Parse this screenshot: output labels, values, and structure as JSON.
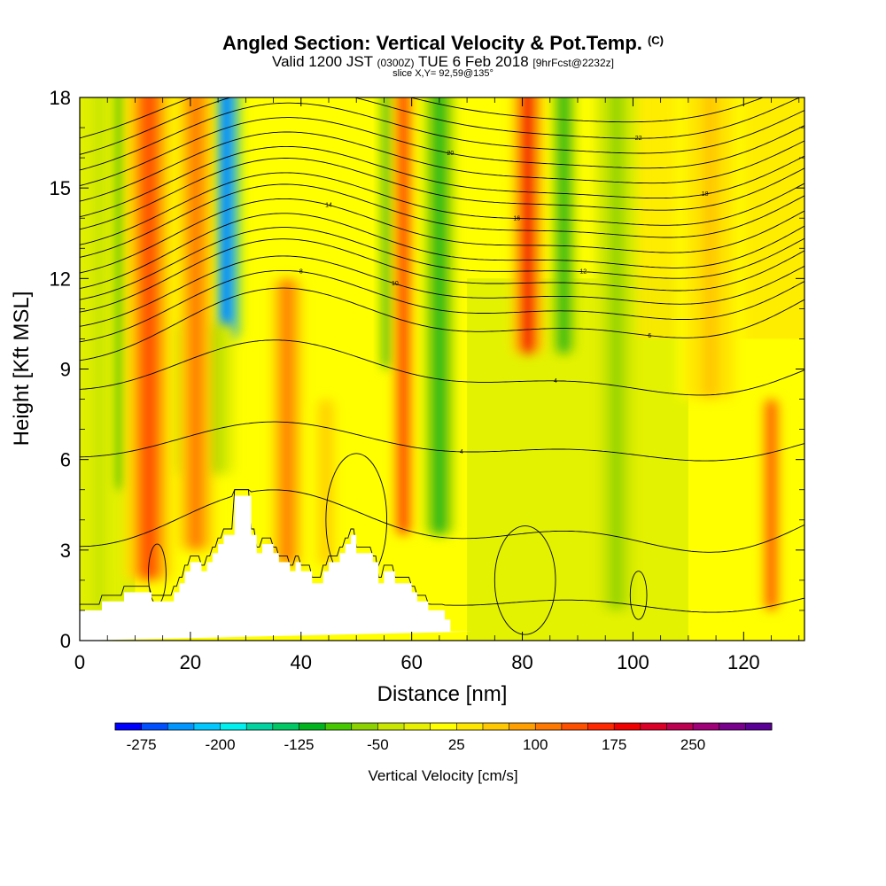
{
  "header": {
    "title": "Angled Section: Vertical Velocity & Pot.Temp.",
    "title_suffix": "(C)",
    "valid_prefix": "Valid 1200 JST",
    "valid_utc": "(0300Z)",
    "valid_date": "TUE 6 Feb 2018",
    "forecast": "[9hrFcst@2232z]",
    "slice": "slice X,Y= 92,59@135°"
  },
  "chart_data": {
    "type": "heatmap",
    "xlabel": "Distance [nm]",
    "ylabel": "Height [Kft MSL]",
    "xlim": [
      0,
      131
    ],
    "ylim": [
      0,
      18
    ],
    "x_ticks": [
      0,
      20,
      40,
      60,
      80,
      100,
      120
    ],
    "y_ticks": [
      0,
      3,
      6,
      9,
      12,
      15,
      18
    ],
    "colorbar": {
      "label": "Vertical Velocity [cm/s]",
      "min": -300,
      "step": 25,
      "tick_labels": [
        "-275",
        "-200",
        "-125",
        "-50",
        "25",
        "100",
        "175",
        "250"
      ],
      "colors": [
        "#0000ff",
        "#0050ff",
        "#0096ff",
        "#00c8ff",
        "#00f0f0",
        "#00d2a0",
        "#00c864",
        "#00b41e",
        "#46c800",
        "#8cd200",
        "#c8e600",
        "#e6f000",
        "#ffff00",
        "#ffe600",
        "#ffc800",
        "#ffa000",
        "#ff7800",
        "#ff5000",
        "#ff2800",
        "#f00000",
        "#dc0028",
        "#be0050",
        "#a00078",
        "#78008c",
        "#5a0096"
      ]
    },
    "updraft_columns": [
      {
        "x": 12.5,
        "w": 4.5,
        "w_cms": 140,
        "top": 18.5,
        "bottom": 2.0
      },
      {
        "x": 21.0,
        "w": 3.5,
        "w_cms": 100,
        "top": 18.5,
        "bottom": 3.0
      },
      {
        "x": 37.5,
        "w": 3.0,
        "w_cms": 110,
        "top": 12.0,
        "bottom": 2.5
      },
      {
        "x": 44.5,
        "w": 2.5,
        "w_cms": 60,
        "top": 8.0,
        "bottom": 2.5
      },
      {
        "x": 58.5,
        "w": 2.0,
        "w_cms": 170,
        "top": 18.5,
        "bottom": 3.5
      },
      {
        "x": 81.0,
        "w": 3.0,
        "w_cms": 180,
        "top": 18.5,
        "bottom": 9.5
      },
      {
        "x": 114.0,
        "w": 6.0,
        "w_cms": 50,
        "top": 18.5,
        "bottom": 8.0
      },
      {
        "x": 125.0,
        "w": 1.8,
        "w_cms": 160,
        "top": 8.0,
        "bottom": 1.0
      }
    ],
    "downdraft_columns": [
      {
        "x": 7.0,
        "w": 2.5,
        "w_cms": -90,
        "top": 18.5,
        "bottom": 5.0
      },
      {
        "x": 26.5,
        "w": 2.6,
        "w_cms": -275,
        "top": 18.5,
        "bottom": 10.0
      },
      {
        "x": 22.0,
        "w": 6.0,
        "w_cms": -80,
        "top": 10.5,
        "bottom": 5.5
      },
      {
        "x": 55.5,
        "w": 1.2,
        "w_cms": -110,
        "top": 18.5,
        "bottom": 9.0
      },
      {
        "x": 65.0,
        "w": 2.8,
        "w_cms": -110,
        "top": 18.5,
        "bottom": 3.5
      },
      {
        "x": 87.5,
        "w": 2.2,
        "w_cms": -120,
        "top": 18.5,
        "bottom": 9.5
      },
      {
        "x": 97.0,
        "w": 4.0,
        "w_cms": -55,
        "top": 18.5,
        "bottom": 1.0
      },
      {
        "x": 3.5,
        "w": 2.5,
        "w_cms": -40,
        "top": 18.5,
        "bottom": 1.0
      }
    ],
    "terrain": {
      "x": [
        0,
        4,
        4,
        8,
        8,
        13,
        13,
        17,
        17,
        18,
        18,
        19,
        19,
        20,
        20,
        22,
        22,
        23,
        23,
        24,
        24,
        25,
        25,
        26,
        26,
        28,
        28,
        31,
        31,
        32,
        32,
        33,
        33,
        35,
        35,
        36,
        36,
        38,
        38,
        39,
        39,
        40,
        40,
        42,
        42,
        44,
        44,
        45,
        45,
        47,
        47,
        48,
        48,
        49,
        49,
        50,
        50,
        53,
        53,
        54,
        54,
        55,
        55,
        57,
        57,
        60,
        60,
        61,
        61,
        63,
        63,
        66,
        66,
        67,
        67,
        71,
        71,
        131
      ],
      "h": [
        1.0,
        1.0,
        1.3,
        1.3,
        1.6,
        1.6,
        1.3,
        1.3,
        1.6,
        1.6,
        1.9,
        1.9,
        2.3,
        2.3,
        2.6,
        2.6,
        2.3,
        2.3,
        2.6,
        2.6,
        2.9,
        2.9,
        3.2,
        3.2,
        3.5,
        3.5,
        4.8,
        4.8,
        3.5,
        3.5,
        2.9,
        2.9,
        3.2,
        3.2,
        2.9,
        2.9,
        2.6,
        2.6,
        2.3,
        2.3,
        2.6,
        2.6,
        2.3,
        2.3,
        1.9,
        1.9,
        2.3,
        2.3,
        2.6,
        2.6,
        2.9,
        2.9,
        3.2,
        3.2,
        3.5,
        3.5,
        2.9,
        2.9,
        2.6,
        2.6,
        1.9,
        1.9,
        2.3,
        2.3,
        1.9,
        1.9,
        1.6,
        1.6,
        1.3,
        1.3,
        1.0,
        1.0,
        0.7,
        0.7,
        0.3,
        0.3,
        0.3
      ]
    },
    "isentropes": [
      {
        "base": 1.4,
        "amp": 0.6,
        "wave": 1,
        "label": ""
      },
      {
        "base": 3.8,
        "amp": 1.2,
        "wave": 1,
        "label": ""
      },
      {
        "base": 6.5,
        "amp": 0.8,
        "wave": 1,
        "label": "4"
      },
      {
        "base": 8.9,
        "amp": 1.2,
        "wave": 1,
        "label": "4"
      },
      {
        "base": 10.6,
        "amp": 1.6,
        "wave": 1,
        "label": "6"
      },
      {
        "base": 11.2,
        "amp": 1.6,
        "wave": 1,
        "label": "8"
      },
      {
        "base": 11.7,
        "amp": 1.6,
        "wave": 1,
        "label": "10"
      },
      {
        "base": 12.2,
        "amp": 1.7,
        "wave": 1,
        "label": ""
      },
      {
        "base": 12.6,
        "amp": 1.7,
        "wave": 1,
        "label": "12"
      },
      {
        "base": 13.0,
        "amp": 1.8,
        "wave": 1,
        "label": ""
      },
      {
        "base": 13.5,
        "amp": 1.8,
        "wave": 1,
        "label": "14"
      },
      {
        "base": 14.0,
        "amp": 1.8,
        "wave": 1,
        "label": ""
      },
      {
        "base": 14.4,
        "amp": 1.8,
        "wave": 1,
        "label": "16"
      },
      {
        "base": 14.9,
        "amp": 1.8,
        "wave": 1,
        "label": ""
      },
      {
        "base": 15.3,
        "amp": 1.8,
        "wave": 1,
        "label": "18"
      },
      {
        "base": 15.8,
        "amp": 1.8,
        "wave": 1,
        "label": ""
      },
      {
        "base": 16.3,
        "amp": 1.8,
        "wave": 1,
        "label": "20"
      },
      {
        "base": 16.8,
        "amp": 1.8,
        "wave": 1,
        "label": ""
      },
      {
        "base": 17.3,
        "amp": 1.8,
        "wave": 1,
        "label": "22"
      },
      {
        "base": 17.8,
        "amp": 1.7,
        "wave": 1,
        "label": ""
      }
    ],
    "closed_contours": [
      {
        "cx": 80.5,
        "cy": 2.0,
        "rx": 5.5,
        "ry": 1.8
      },
      {
        "cx": 101.0,
        "cy": 1.5,
        "rx": 1.5,
        "ry": 0.8
      },
      {
        "cx": 50.0,
        "cy": 4.0,
        "rx": 5.5,
        "ry": 2.2
      },
      {
        "cx": 14.0,
        "cy": 2.2,
        "rx": 1.6,
        "ry": 1.0
      }
    ]
  }
}
